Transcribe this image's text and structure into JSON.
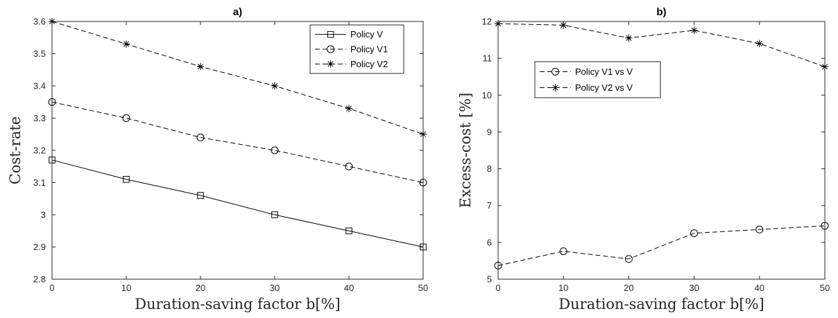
{
  "chart_data": [
    {
      "type": "line",
      "title": "a)",
      "xlabel": "Duration-saving factor b[%]",
      "ylabel": "Cost-rate",
      "x": [
        0,
        10,
        20,
        30,
        40,
        50
      ],
      "xlim": [
        0,
        50
      ],
      "ylim": [
        2.8,
        3.6
      ],
      "xticks": [
        "0",
        "10",
        "20",
        "30",
        "40",
        "50"
      ],
      "yticks": [
        "2.8",
        "2.9",
        "3",
        "3.1",
        "3.2",
        "3.3",
        "3.4",
        "3.5",
        "3.6"
      ],
      "grid": false,
      "legend_position": "top-right",
      "series": [
        {
          "name": "Policy V",
          "values": [
            3.17,
            3.11,
            3.06,
            3.0,
            2.95,
            2.9
          ],
          "line": "solid",
          "marker": "square"
        },
        {
          "name": "Policy V1",
          "values": [
            3.35,
            3.3,
            3.24,
            3.2,
            3.15,
            3.1
          ],
          "line": "dashed",
          "marker": "circle"
        },
        {
          "name": "Policy V2",
          "values": [
            3.6,
            3.53,
            3.46,
            3.4,
            3.33,
            3.25
          ],
          "line": "dashed",
          "marker": "asterisk"
        }
      ]
    },
    {
      "type": "line",
      "title": "b)",
      "xlabel": "Duration-saving factor b[%]",
      "ylabel": "Excess-cost [%]",
      "x": [
        0,
        10,
        20,
        30,
        40,
        50
      ],
      "xlim": [
        0,
        50
      ],
      "ylim": [
        5,
        12
      ],
      "xticks": [
        "0",
        "10",
        "20",
        "30",
        "40",
        "50"
      ],
      "yticks": [
        "5",
        "6",
        "7",
        "8",
        "9",
        "10",
        "11",
        "12"
      ],
      "grid": false,
      "legend_position": "upper-left",
      "series": [
        {
          "name": "Policy V1 vs V",
          "values": [
            5.37,
            5.76,
            5.55,
            6.25,
            6.35,
            6.45
          ],
          "line": "dashed",
          "marker": "circle"
        },
        {
          "name": "Policy V2 vs V",
          "values": [
            11.94,
            11.9,
            11.55,
            11.76,
            11.4,
            10.77
          ],
          "line": "dashed",
          "marker": "asterisk"
        }
      ]
    }
  ]
}
